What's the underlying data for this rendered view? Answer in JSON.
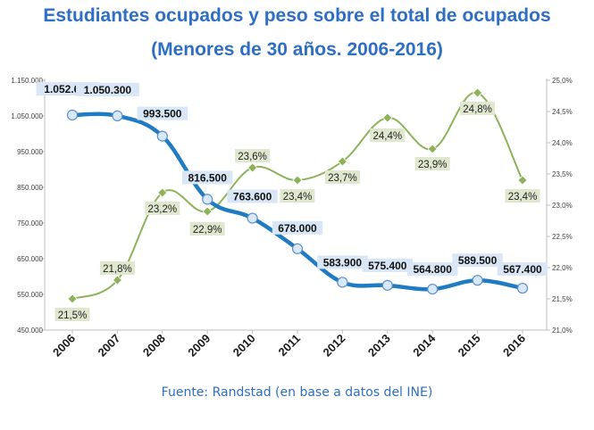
{
  "title": "Estudiantes ocupados y peso sobre el total de ocupados",
  "subtitle": "(Menores de 30 años. 2006-2016)",
  "source": "Fuente: Randstad (en base a datos del INE)",
  "colors": {
    "title": "#2e6fc4",
    "series_students": "#1f7bc2",
    "series_share": "#8db25a",
    "label_students_bg": "#d8e6f5",
    "label_share_bg": "#dfe8cf"
  },
  "chart_data": {
    "type": "line",
    "categories": [
      "2006",
      "2007",
      "2008",
      "2009",
      "2010",
      "2011",
      "2012",
      "2013",
      "2014",
      "2015",
      "2016"
    ],
    "series": [
      {
        "axis": "left",
        "values": [
          1052600,
          1050300,
          993500,
          816500,
          763600,
          678000,
          583900,
          575400,
          564800,
          589500,
          567400
        ],
        "labels": [
          "1.052.600",
          "1.050.300",
          "993.500",
          "816.500",
          "763.600",
          "678.000",
          "583.900",
          "575.400",
          "564.800",
          "589.500",
          "567.400"
        ]
      },
      {
        "axis": "right",
        "values": [
          21.5,
          21.8,
          23.2,
          22.9,
          23.6,
          23.4,
          23.7,
          24.4,
          23.9,
          24.8,
          23.4
        ],
        "labels": [
          "21,5%",
          "21,8%",
          "23,2%",
          "22,9%",
          "23,6%",
          "23,4%",
          "23,7%",
          "24,4%",
          "23,9%",
          "24,8%",
          "23,4%"
        ]
      }
    ],
    "y_left": {
      "ylim": [
        450000,
        1150000
      ],
      "ticks": [
        450000,
        550000,
        650000,
        750000,
        850000,
        950000,
        1050000,
        1150000
      ],
      "tick_labels": [
        "450.000",
        "550.000",
        "650.000",
        "750.000",
        "850.000",
        "950.000",
        "1.050.000",
        "1.150.000"
      ]
    },
    "y_right": {
      "ylim": [
        21.0,
        25.0
      ],
      "ticks": [
        21.0,
        21.5,
        22.0,
        22.5,
        23.0,
        23.5,
        24.0,
        24.5,
        25.0
      ],
      "tick_labels": [
        "21,0%",
        "21,5%",
        "22,0%",
        "22,5%",
        "23,0%",
        "23,5%",
        "24,0%",
        "24,5%",
        "25,0%"
      ]
    },
    "grid": false,
    "legend": "none"
  }
}
